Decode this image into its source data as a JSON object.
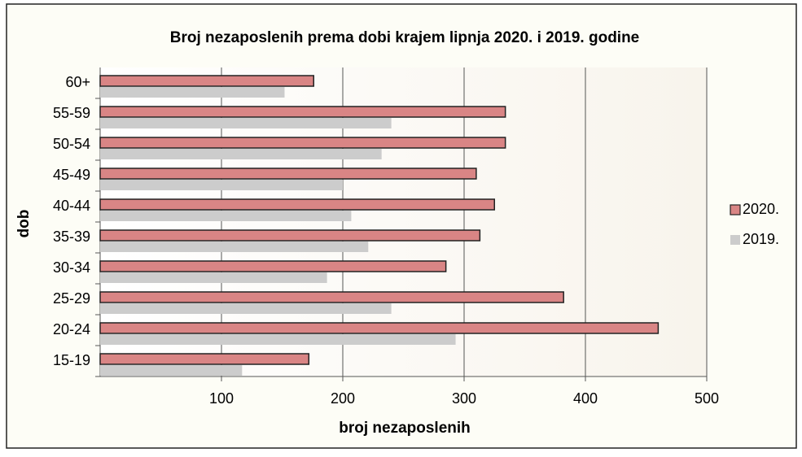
{
  "chart_data": {
    "type": "hbar",
    "title": "Broj nezaposlenih prema dobi krajem lipnja 2020. i 2019. godine",
    "xlabel": "broj nezaposlenih",
    "ylabel": "dob",
    "categories": [
      "15-19",
      "20-24",
      "25-29",
      "30-34",
      "35-39",
      "40-44",
      "45-49",
      "50-54",
      "55-59",
      "60+"
    ],
    "series": [
      {
        "name": "2020.",
        "color": "#d98585",
        "values": [
          172,
          460,
          382,
          285,
          313,
          325,
          310,
          334,
          334,
          176
        ]
      },
      {
        "name": "2019.",
        "color": "#cccccc",
        "values": [
          117,
          293,
          240,
          187,
          221,
          207,
          200,
          232,
          240,
          152
        ]
      }
    ],
    "xlim": [
      0,
      500
    ],
    "xticks": [
      100,
      200,
      300,
      400,
      500
    ],
    "grid": true
  }
}
